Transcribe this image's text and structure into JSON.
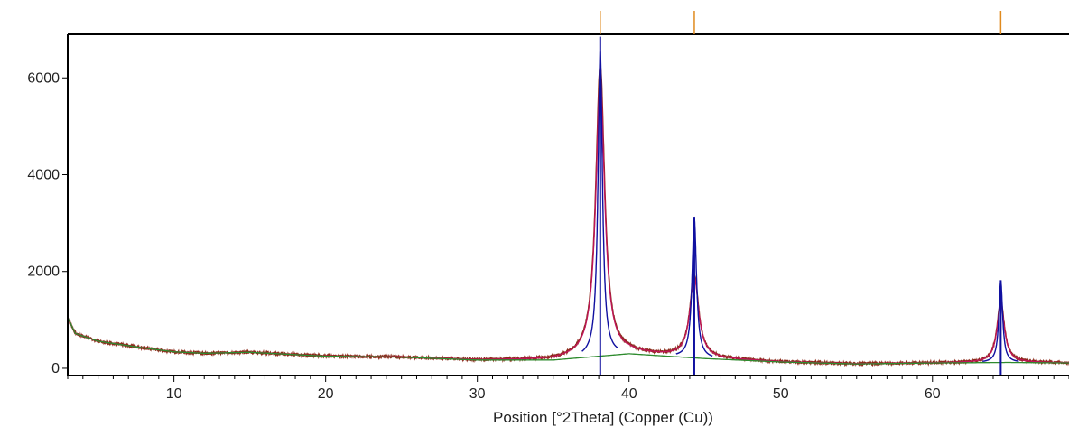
{
  "chart_data": {
    "type": "line",
    "title": "",
    "xlabel": "Position [°2Theta] (Copper (Cu))",
    "ylabel": "",
    "xlim": [
      3,
      69
    ],
    "ylim": [
      -150,
      6900
    ],
    "x_ticks": [
      10,
      20,
      30,
      40,
      50,
      60
    ],
    "y_ticks": [
      0,
      2000,
      4000,
      6000
    ],
    "grid": false,
    "legend": "none",
    "colors": {
      "observed": "#8b2a1a",
      "calculated": "#c0145a",
      "background": "#2e8b2e",
      "peak_sticks": "#1010a0",
      "reference_markers": "#e08a1e",
      "axis": "#000000"
    },
    "background": {
      "x": [
        3.0,
        3.5,
        5,
        8,
        10,
        12,
        15,
        20,
        25,
        30,
        35,
        40,
        45,
        50,
        55,
        60,
        65,
        69
      ],
      "y": [
        1050,
        720,
        560,
        420,
        340,
        310,
        330,
        250,
        230,
        170,
        170,
        300,
        200,
        130,
        90,
        110,
        120,
        110
      ]
    },
    "peaks": [
      {
        "position": 38.1,
        "height_observed": 6000,
        "height_calculated": 5700,
        "stick": 6850,
        "width": 0.35
      },
      {
        "position": 44.3,
        "height_observed": 1700,
        "height_calculated": 1650,
        "stick": 3130,
        "width": 0.35
      },
      {
        "position": 64.5,
        "height_observed": 1250,
        "height_calculated": 1200,
        "stick": 1820,
        "width": 0.3
      }
    ],
    "reference_positions": [
      38.1,
      44.3,
      64.5
    ]
  }
}
